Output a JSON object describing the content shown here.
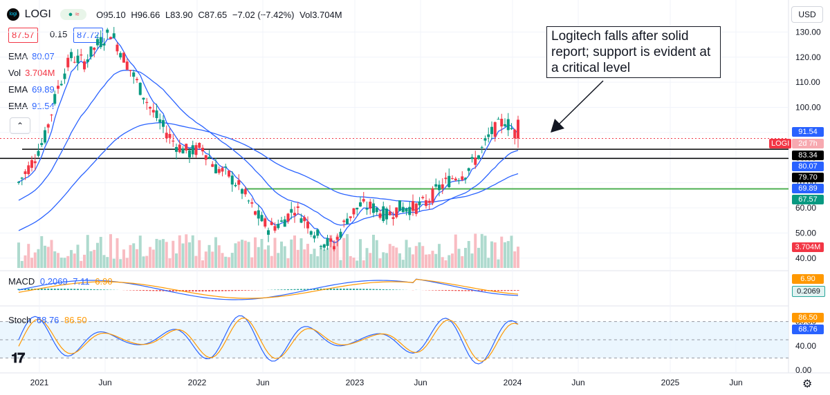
{
  "header": {
    "symbol": "LOGI",
    "open": "O95.10",
    "high": "H96.66",
    "low": "L83.90",
    "close": "C87.65",
    "change": "−7.02 (−7.42%)",
    "volume": "Vol3.704M",
    "bid": "87.57",
    "spread": "0.15",
    "ask": "87.72",
    "currency": "USD"
  },
  "indicators": [
    {
      "name": "EMA",
      "value": "80.07",
      "color": "#2962ff"
    },
    {
      "name": "Vol",
      "value": "3.704M",
      "color": "#f23645"
    },
    {
      "name": "EMA",
      "value": "69.89",
      "color": "#2962ff"
    },
    {
      "name": "EMA",
      "value": "91.54",
      "color": "#2962ff"
    }
  ],
  "annotation": "Logitech falls after solid report; support is evident at a critical level",
  "price_tags": {
    "last": "91.54",
    "logi_label": "LOGI",
    "logi_time": "2d 7h",
    "ema80": "80.07",
    "support1": "83.34",
    "support2": "79.70",
    "ema69": "69.89",
    "support3": "67.57",
    "volume": "3.704M"
  },
  "macd": {
    "label": "MACD",
    "values": [
      "0.2069",
      "7.11",
      "6.90"
    ],
    "tag_signal": "6.90",
    "tag_hist": "0.2069"
  },
  "stoch": {
    "label": "Stoch",
    "values": [
      "68.76",
      "86.50"
    ],
    "tag_d": "86.50",
    "tag_k": "68.76",
    "axis": [
      "80.00",
      "40.00",
      "0.00"
    ]
  },
  "colors": {
    "up": "#089981",
    "down": "#f23645",
    "ema": "#2962ff",
    "support": "#000000",
    "green_line": "#4caf50",
    "macd_signal": "#ff9800"
  },
  "chart_data": {
    "type": "line",
    "title": "",
    "series": [
      {
        "name": "",
        "x": [
          "2020-11",
          "2020-12",
          "2021-01",
          "2021-02",
          "2021-03",
          "2021-04",
          "2021-05",
          "2021-06",
          "2021-07",
          "2021-08",
          "2021-09",
          "2021-10",
          "2021-11",
          "2021-12",
          "2022-01",
          "2022-02",
          "2022-03",
          "2022-04",
          "2022-05",
          "2022-06",
          "2022-07",
          "2022-08",
          "2022-09",
          "2022-10",
          "2022-11",
          "2022-12",
          "2023-01",
          "2023-02",
          "2023-03",
          "2023-04",
          "2023-05",
          "2023-06",
          "2023-07",
          "2023-08",
          "2023-09",
          "2023-10",
          "2023-11",
          "2023-12",
          "2024-01"
        ],
        "y": [
          70,
          78,
          88,
          108,
          120,
          118,
          125,
          130,
          120,
          110,
          100,
          92,
          85,
          82,
          84,
          76,
          73,
          67,
          58,
          52,
          54,
          60,
          54,
          47,
          45,
          56,
          61,
          60,
          57,
          60,
          60,
          62,
          68,
          72,
          74,
          81,
          90,
          95,
          88
        ]
      }
    ],
    "ema_values": {
      "80.07": 80.07,
      "69.89": 69.89,
      "91.54": 91.54
    },
    "support_levels": [
      83.34,
      79.7,
      67.57
    ],
    "x_ticks": [
      "2021",
      "Jun",
      "2022",
      "Jun",
      "2023",
      "Jun",
      "2024",
      "Jun",
      "2025",
      "Jun"
    ],
    "y_ticks": [
      130,
      120,
      110,
      100,
      90,
      80,
      70,
      60,
      50,
      40
    ],
    "ylim": [
      35,
      140
    ],
    "grid": true
  }
}
